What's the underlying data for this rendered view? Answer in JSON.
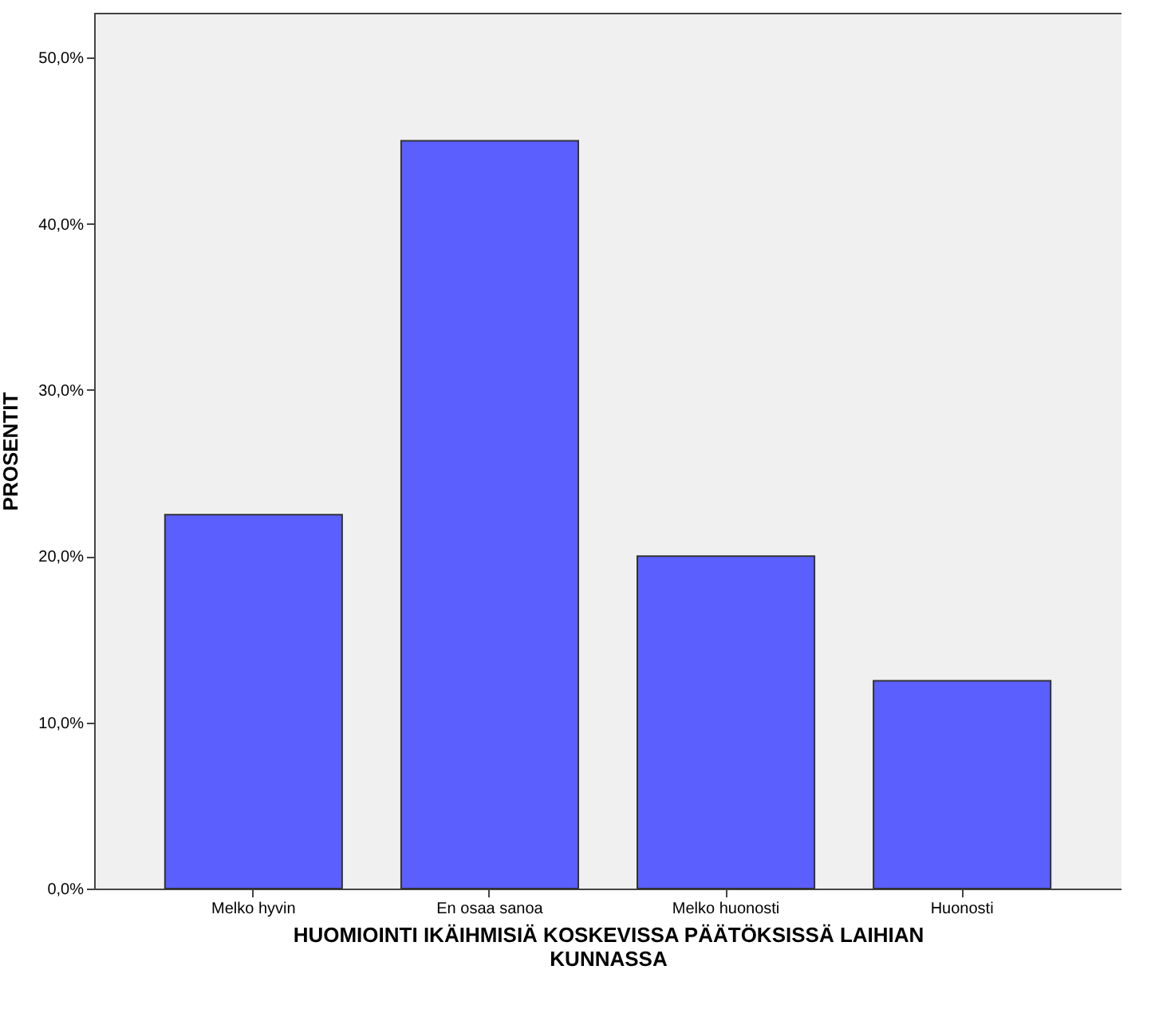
{
  "chart_data": {
    "type": "bar",
    "xlabel": "HUOMIOINTI IKÄIHMISIÄ KOSKEVISSA PÄÄTÖKSISSÄ LAIHIAN KUNNASSA",
    "ylabel": "PROSENTIT",
    "categories": [
      "Melko hyvin",
      "En osaa sanoa",
      "Melko huonosti",
      "Huonosti"
    ],
    "values": [
      22.5,
      45.0,
      20.0,
      12.5
    ],
    "color": "#5b5ffe",
    "ylim": [
      0,
      52.7
    ],
    "yticks": [
      {
        "value": 0,
        "label": "0,0%"
      },
      {
        "value": 10,
        "label": "10,0%"
      },
      {
        "value": 20,
        "label": "20,0%"
      },
      {
        "value": 30,
        "label": "30,0%"
      },
      {
        "value": 40,
        "label": "40,0%"
      },
      {
        "value": 50,
        "label": "50,0%"
      }
    ],
    "grid": false
  }
}
